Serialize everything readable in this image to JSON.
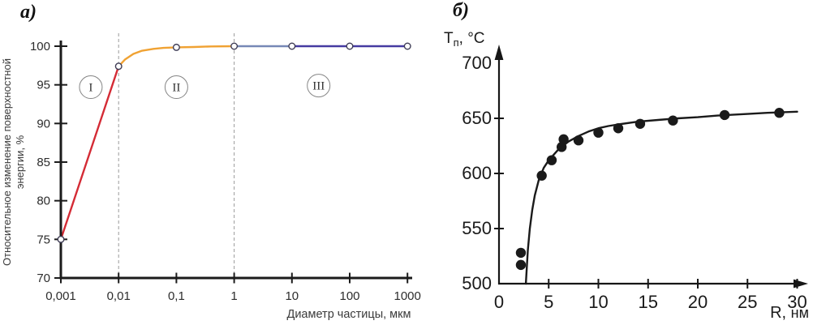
{
  "figure": {
    "panel_a_label": "а)",
    "panel_b_label": "б)"
  },
  "chart_data": [
    {
      "id": "chart-a",
      "type": "line",
      "panel": "а",
      "xlabel": "Диаметр частицы, мкм",
      "ylabel_line1": "Относительное изменение поверхностной",
      "ylabel_line2": "энергии, %",
      "x_scale": "log",
      "xlim": [
        0.001,
        1000
      ],
      "ylim": [
        70,
        100
      ],
      "grid": false,
      "x_ticks": [
        {
          "v": 0.001,
          "label": "0,001"
        },
        {
          "v": 0.01,
          "label": "0,01"
        },
        {
          "v": 0.1,
          "label": "0,1"
        },
        {
          "v": 1,
          "label": "1"
        },
        {
          "v": 10,
          "label": "10"
        },
        {
          "v": 100,
          "label": "100"
        },
        {
          "v": 1000,
          "label": "1000"
        }
      ],
      "y_ticks": [
        {
          "v": 70,
          "label": "70"
        },
        {
          "v": 75,
          "label": "75"
        },
        {
          "v": 80,
          "label": "80"
        },
        {
          "v": 85,
          "label": "85"
        },
        {
          "v": 90,
          "label": "90"
        },
        {
          "v": 95,
          "label": "95"
        },
        {
          "v": 100,
          "label": "100"
        }
      ],
      "guide_lines_x": [
        0.01,
        1
      ],
      "series": [
        {
          "name": "stage-I",
          "color": "#d42b35",
          "points": [
            [
              0.001,
              75
            ],
            [
              0.01,
              97.4
            ]
          ]
        },
        {
          "name": "stage-II",
          "color": "#f0a233",
          "points": [
            [
              0.01,
              97.4
            ],
            [
              0.013,
              98.3
            ],
            [
              0.018,
              99.0
            ],
            [
              0.025,
              99.4
            ],
            [
              0.04,
              99.65
            ],
            [
              0.06,
              99.78
            ],
            [
              0.1,
              99.85
            ],
            [
              0.2,
              99.9
            ],
            [
              0.4,
              99.97
            ],
            [
              1,
              100
            ]
          ]
        },
        {
          "name": "stage-III-light",
          "color": "#7688b6",
          "points": [
            [
              1,
              100
            ],
            [
              10,
              100
            ]
          ]
        },
        {
          "name": "stage-III-dark",
          "color": "#453ba1",
          "points": [
            [
              10,
              100
            ],
            [
              100,
              100
            ],
            [
              1000,
              100
            ]
          ]
        }
      ],
      "markers": [
        [
          0.001,
          75
        ],
        [
          0.01,
          97.4
        ],
        [
          0.1,
          99.85
        ],
        [
          1,
          100
        ],
        [
          10,
          100
        ],
        [
          100,
          100
        ],
        [
          1000,
          100
        ]
      ],
      "region_labels": [
        {
          "numeral": "I",
          "x": 0.0033,
          "y": 94.7
        },
        {
          "numeral": "II",
          "x": 0.1,
          "y": 94.7
        },
        {
          "numeral": "III",
          "x": 29,
          "y": 94.9
        }
      ],
      "colors": {
        "axis": "#1b1b1b",
        "guide": "#9b9b9b",
        "marker_stroke": "#3e3c55",
        "text": "#2d2d2d"
      }
    },
    {
      "id": "chart-b",
      "type": "scatter",
      "panel": "б",
      "ylabel_main": "T",
      "ylabel_sub": "п",
      "ylabel_rest": ", °C",
      "xlabel_main": "R, ",
      "xlabel_unit": "нм",
      "xlim": [
        0,
        30
      ],
      "ylim": [
        500,
        700
      ],
      "grid": false,
      "x_ticks": [
        {
          "v": 0,
          "label": "0",
          "tick": false
        },
        {
          "v": 5,
          "label": "5"
        },
        {
          "v": 10,
          "label": "10"
        },
        {
          "v": 15,
          "label": "15"
        },
        {
          "v": 20,
          "label": "20"
        },
        {
          "v": 25,
          "label": "25"
        },
        {
          "v": 30,
          "label": "30"
        }
      ],
      "y_ticks": [
        {
          "v": 500,
          "label": "500",
          "tick": false
        },
        {
          "v": 550,
          "label": "550"
        },
        {
          "v": 600,
          "label": "600"
        },
        {
          "v": 650,
          "label": "650"
        },
        {
          "v": 700,
          "label": "700",
          "tick": false
        }
      ],
      "scatter": [
        [
          2.2,
          528
        ],
        [
          2.2,
          517
        ],
        [
          4.3,
          598
        ],
        [
          5.3,
          612
        ],
        [
          6.3,
          624
        ],
        [
          6.5,
          631
        ],
        [
          8,
          630
        ],
        [
          10,
          637
        ],
        [
          12,
          641
        ],
        [
          14.2,
          645
        ],
        [
          17.5,
          648
        ],
        [
          22.7,
          653
        ],
        [
          28.2,
          655
        ]
      ],
      "fit_curve": [
        [
          2.7,
          500
        ],
        [
          2.9,
          530
        ],
        [
          3.1,
          550
        ],
        [
          3.35,
          567
        ],
        [
          3.6,
          580
        ],
        [
          4,
          594
        ],
        [
          4.5,
          605
        ],
        [
          5,
          612
        ],
        [
          5.5,
          617
        ],
        [
          6,
          622
        ],
        [
          6.5,
          625.5
        ],
        [
          7,
          629
        ],
        [
          8,
          634
        ],
        [
          9,
          638
        ],
        [
          10,
          641
        ],
        [
          11,
          643
        ],
        [
          12,
          644.5
        ],
        [
          14,
          647
        ],
        [
          16,
          648.5
        ],
        [
          18,
          650
        ],
        [
          20,
          651
        ],
        [
          22,
          652.5
        ],
        [
          25,
          654
        ],
        [
          27,
          655
        ],
        [
          30,
          656
        ]
      ],
      "colors": {
        "axis": "#161616",
        "points": "#1a1a1a",
        "curve": "#1a1a1a",
        "text": "#1a1a1a"
      }
    }
  ]
}
